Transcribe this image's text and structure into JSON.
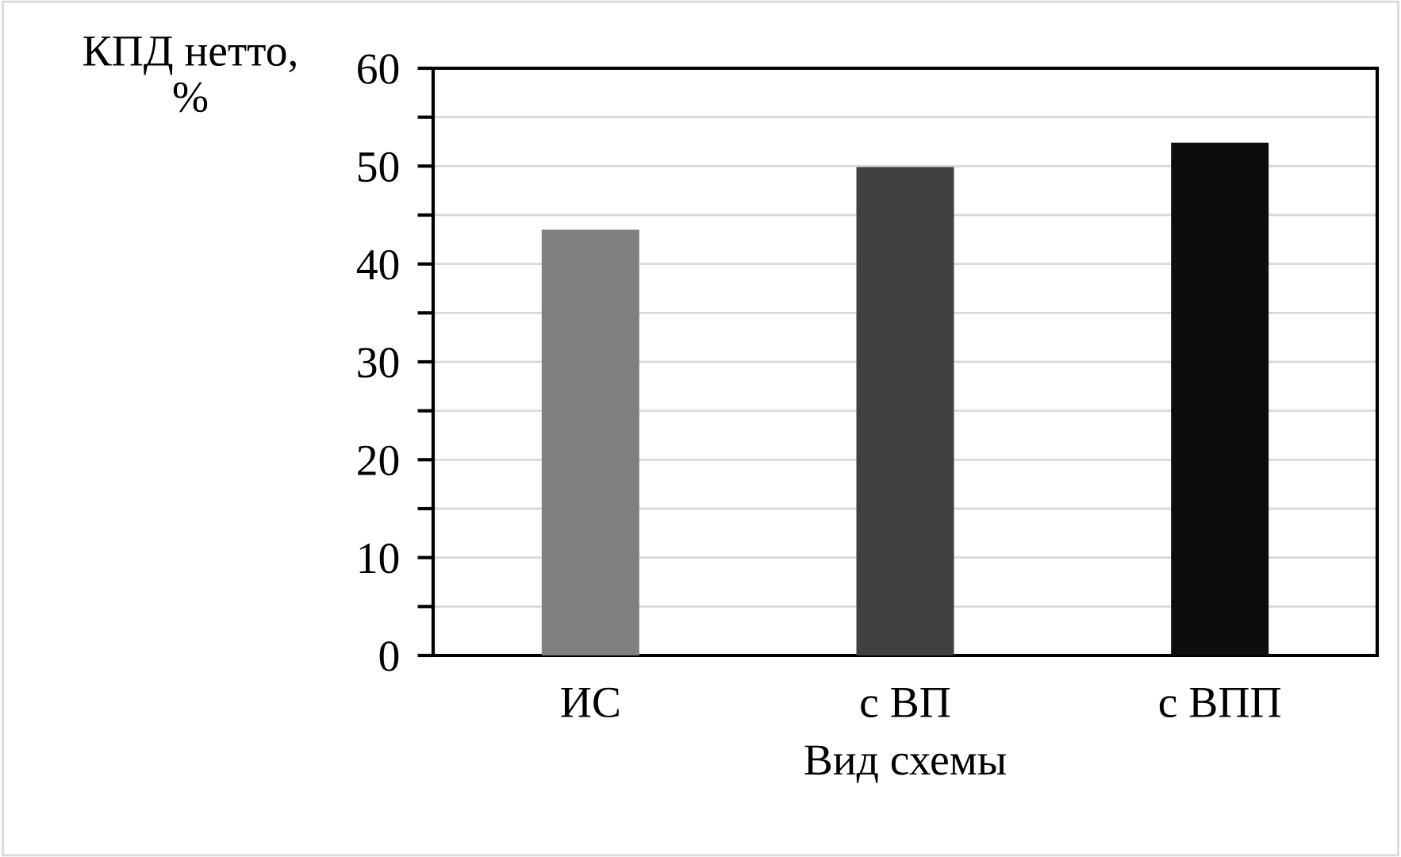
{
  "chart_data": {
    "type": "bar",
    "xlabel": "Вид схемы",
    "ylabel": "КПД нетто,\n%",
    "categories": [
      "ИС",
      "с ВП",
      "с ВПП"
    ],
    "values": [
      43.5,
      49.9,
      52.4
    ],
    "colors": [
      "#7f7f7f",
      "#404040",
      "#0d0d0d"
    ],
    "ylim": [
      0,
      60
    ],
    "yticks": [
      0,
      {
        "value": 5,
        "label": null
      },
      10,
      {
        "value": 15,
        "label": null
      },
      20,
      {
        "value": 25,
        "label": null
      },
      30,
      {
        "value": 35,
        "label": null
      },
      40,
      {
        "value": 45,
        "label": null
      },
      50,
      {
        "value": 55,
        "label": null
      },
      60
    ],
    "grid": "y"
  }
}
